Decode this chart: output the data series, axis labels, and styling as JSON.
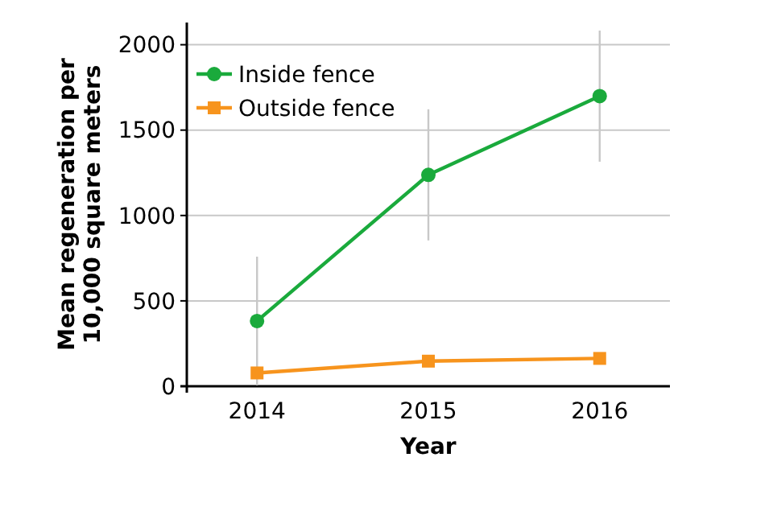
{
  "chart_data": {
    "type": "line",
    "xlabel": "Year",
    "ylabel": "Mean regeneration per 10,000 square meters",
    "categories": [
      "2014",
      "2015",
      "2016"
    ],
    "ylim": [
      0,
      2130
    ],
    "yticks": [
      0,
      500,
      1000,
      1500,
      2000
    ],
    "grid": "y",
    "legend": "top left",
    "series": [
      {
        "name": "Inside fence",
        "color": "#1aaa3c",
        "values": [
          382,
          1238,
          1699
        ],
        "errors": [
          377,
          384,
          384
        ],
        "marker": "circle"
      },
      {
        "name": "Outside fence",
        "color": "#f7941d",
        "values": [
          78,
          147,
          163
        ],
        "marker": "square"
      }
    ]
  }
}
